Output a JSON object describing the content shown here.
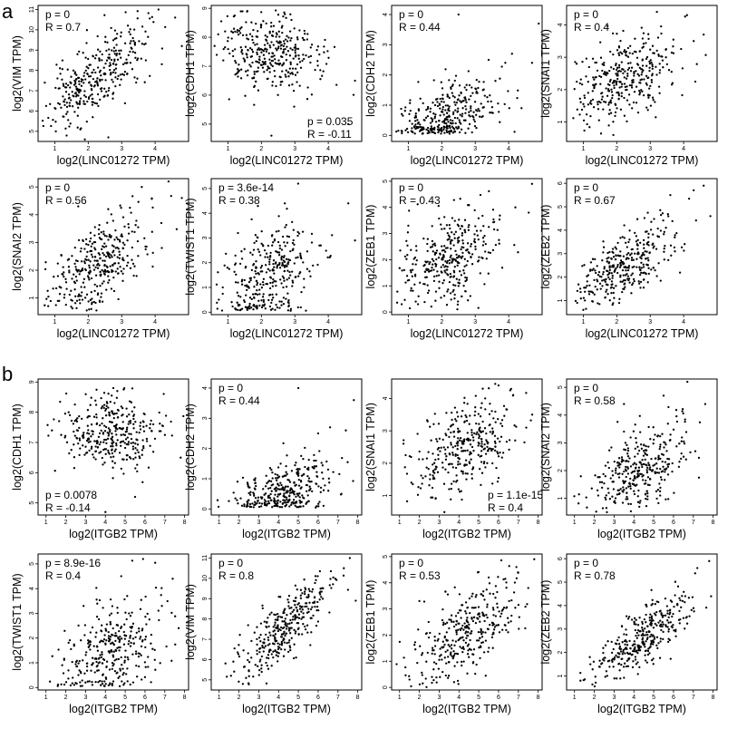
{
  "figure": {
    "panel_letters": [
      "a",
      "b"
    ]
  },
  "chart_data": [
    {
      "type": "scatter",
      "group": "a",
      "xlabel": "log2(LINC01272 TPM)",
      "ylabel": "log2(VIM TPM)",
      "p": "p = 0",
      "r": "R = 0.7",
      "stats_corner": "top-left",
      "xlim": [
        0.5,
        5
      ],
      "ylim": [
        4.5,
        11.2
      ],
      "xticks": [
        "1",
        "2",
        "3",
        "4"
      ],
      "yticks": [
        "5",
        "6",
        "7",
        "8",
        "9",
        "10",
        "11"
      ],
      "r_value": 0.7,
      "x_mean": 2.2,
      "x_sd": 0.75,
      "y_mean": 7.6,
      "y_sd": 1.25,
      "n": 330,
      "seed": 11,
      "points": [
        [
          4.6,
          10.6
        ],
        [
          4.1,
          11.0
        ],
        [
          0.7,
          7.4
        ],
        [
          1.9,
          4.6
        ],
        [
          2.6,
          4.7
        ],
        [
          4.8,
          9.2
        ],
        [
          4.2,
          8.3
        ]
      ]
    },
    {
      "type": "scatter",
      "group": "a",
      "xlabel": "log2(LINC01272 TPM)",
      "ylabel": "log2(CDH1 TPM)",
      "p": "p = 0.035",
      "r": "R = -0.11",
      "stats_corner": "bottom-right",
      "xlim": [
        0.5,
        5
      ],
      "ylim": [
        4.4,
        9.1
      ],
      "xticks": [
        "1",
        "2",
        "3",
        "4"
      ],
      "yticks": [
        "5",
        "6",
        "7",
        "8",
        "9"
      ],
      "r_value": -0.11,
      "x_mean": 2.2,
      "x_sd": 0.75,
      "y_mean": 7.4,
      "y_sd": 0.7,
      "n": 330,
      "seed": 23,
      "points": [
        [
          2.3,
          4.6
        ],
        [
          4.6,
          5.0
        ],
        [
          0.6,
          7.7
        ],
        [
          4.8,
          6.5
        ],
        [
          2.7,
          8.8
        ],
        [
          2.9,
          8.6
        ]
      ]
    },
    {
      "type": "scatter",
      "group": "a",
      "xlabel": "log2(LINC01272 TPM)",
      "ylabel": "log2(CDH2 TPM)",
      "p": "p = 0",
      "r": "R = 0.44",
      "stats_corner": "top-left",
      "xlim": [
        0.5,
        5
      ],
      "ylim": [
        -0.2,
        4.3
      ],
      "xticks": [
        "1",
        "2",
        "3",
        "4"
      ],
      "yticks": [
        "0",
        "1",
        "2",
        "3",
        "4"
      ],
      "r_value": 0.44,
      "x_mean": 2.2,
      "x_sd": 0.75,
      "y_mean": 0.6,
      "y_sd": 0.6,
      "y_min": 0.05,
      "n": 330,
      "seed": 37,
      "points": [
        [
          2.5,
          4.0
        ],
        [
          4.9,
          3.7
        ],
        [
          4.1,
          2.7
        ],
        [
          3.4,
          2.5
        ],
        [
          3.9,
          2.4
        ],
        [
          4.7,
          2.4
        ]
      ]
    },
    {
      "type": "scatter",
      "group": "a",
      "xlabel": "log2(LINC01272 TPM)",
      "ylabel": "log2(SNAI1 TPM)",
      "p": "p = 0",
      "r": "R = 0.4",
      "stats_corner": "top-left",
      "xlim": [
        0.5,
        5
      ],
      "ylim": [
        0.4,
        4.6
      ],
      "xticks": [
        "1",
        "2",
        "3",
        "4"
      ],
      "yticks": [
        "1",
        "2",
        "3",
        "4"
      ],
      "r_value": 0.4,
      "x_mean": 2.2,
      "x_sd": 0.75,
      "y_mean": 2.4,
      "y_sd": 0.75,
      "n": 330,
      "seed": 41,
      "points": [
        [
          4.1,
          4.3
        ],
        [
          3.2,
          4.4
        ],
        [
          4.6,
          3.7
        ],
        [
          4.3,
          3.5
        ],
        [
          0.8,
          2.8
        ],
        [
          1.9,
          0.6
        ]
      ]
    },
    {
      "type": "scatter",
      "group": "a",
      "xlabel": "log2(LINC01272 TPM)",
      "ylabel": "log2(SNAI2 TPM)",
      "p": "p = 0",
      "r": "R = 0.56",
      "stats_corner": "top-left",
      "xlim": [
        0.5,
        5
      ],
      "ylim": [
        0.4,
        5.3
      ],
      "xticks": [
        "1",
        "2",
        "3",
        "4"
      ],
      "yticks": [
        "1",
        "2",
        "3",
        "4",
        "5"
      ],
      "r_value": 0.56,
      "x_mean": 2.2,
      "x_sd": 0.75,
      "y_mean": 2.1,
      "y_sd": 0.9,
      "n": 330,
      "seed": 53,
      "points": [
        [
          4.4,
          5.2
        ],
        [
          3.6,
          5.0
        ],
        [
          4.8,
          4.6
        ],
        [
          4.2,
          2.8
        ],
        [
          1.7,
          4.3
        ]
      ]
    },
    {
      "type": "scatter",
      "group": "a",
      "xlabel": "log2(LINC01272 TPM)",
      "ylabel": "log2(TWIST1 TPM)",
      "p": "p = 3.6e-14",
      "r": "R = 0.38",
      "stats_corner": "top-left",
      "xlim": [
        0.5,
        5
      ],
      "ylim": [
        -0.1,
        5.4
      ],
      "xticks": [
        "1",
        "2",
        "3",
        "4"
      ],
      "yticks": [
        "0",
        "1",
        "2",
        "3",
        "4",
        "5"
      ],
      "r_value": 0.38,
      "x_mean": 2.2,
      "x_sd": 0.75,
      "y_mean": 1.5,
      "y_sd": 1.0,
      "y_min": 0.05,
      "n": 330,
      "seed": 67,
      "points": [
        [
          4.6,
          4.4
        ],
        [
          3.1,
          5.2
        ],
        [
          4.8,
          2.9
        ],
        [
          1.3,
          3.2
        ],
        [
          2.7,
          4.4
        ]
      ]
    },
    {
      "type": "scatter",
      "group": "a",
      "xlabel": "log2(LINC01272 TPM)",
      "ylabel": "log2(ZEB1 TPM)",
      "p": "p = 0",
      "r": "R = 0.43",
      "stats_corner": "top-left",
      "xlim": [
        0.5,
        5
      ],
      "ylim": [
        -0.1,
        5.1
      ],
      "xticks": [
        "1",
        "2",
        "3",
        "4"
      ],
      "yticks": [
        "0",
        "1",
        "2",
        "3",
        "4",
        "5"
      ],
      "r_value": 0.43,
      "x_mean": 2.2,
      "x_sd": 0.75,
      "y_mean": 2.0,
      "y_sd": 0.95,
      "n": 330,
      "seed": 79,
      "points": [
        [
          4.7,
          4.9
        ],
        [
          4.6,
          3.8
        ],
        [
          4.2,
          4.0
        ],
        [
          0.8,
          0.3
        ],
        [
          1.0,
          3.3
        ]
      ]
    },
    {
      "type": "scatter",
      "group": "a",
      "xlabel": "log2(LINC01272 TPM)",
      "ylabel": "log2(ZEB2 TPM)",
      "p": "p = 0",
      "r": "R = 0.67",
      "stats_corner": "top-left",
      "xlim": [
        0.5,
        5
      ],
      "ylim": [
        0.4,
        6.2
      ],
      "xticks": [
        "1",
        "2",
        "3",
        "4"
      ],
      "yticks": [
        "1",
        "2",
        "3",
        "4",
        "5",
        "6"
      ],
      "r_value": 0.67,
      "x_mean": 2.2,
      "x_sd": 0.75,
      "y_mean": 2.5,
      "y_sd": 1.0,
      "n": 330,
      "seed": 83,
      "points": [
        [
          4.6,
          5.9
        ],
        [
          4.3,
          5.7
        ],
        [
          4.8,
          4.6
        ],
        [
          3.6,
          5.5
        ],
        [
          1.0,
          0.6
        ]
      ]
    },
    {
      "type": "scatter",
      "group": "b",
      "xlabel": "log2(ITGB2 TPM)",
      "ylabel": "log2(CDH1 TPM)",
      "p": "p = 0.0078",
      "r": "R = -0.14",
      "stats_corner": "bottom-left",
      "xlim": [
        0.6,
        8.2
      ],
      "ylim": [
        4.6,
        9.1
      ],
      "xticks": [
        "1",
        "2",
        "3",
        "4",
        "5",
        "6",
        "7",
        "8"
      ],
      "yticks": [
        "5",
        "6",
        "7",
        "8",
        "9"
      ],
      "r_value": -0.14,
      "x_mean": 4.3,
      "x_sd": 1.25,
      "y_mean": 7.3,
      "y_sd": 0.65,
      "n": 330,
      "seed": 97,
      "points": [
        [
          4.0,
          4.7
        ],
        [
          5.5,
          5.2
        ],
        [
          1.3,
          7.4
        ],
        [
          7.8,
          6.5
        ],
        [
          4.4,
          8.8
        ],
        [
          4.6,
          8.7
        ]
      ]
    },
    {
      "type": "scatter",
      "group": "b",
      "xlabel": "log2(ITGB2 TPM)",
      "ylabel": "log2(CDH2 TPM)",
      "p": "p = 0",
      "r": "R = 0.44",
      "stats_corner": "top-left",
      "xlim": [
        0.6,
        8.2
      ],
      "ylim": [
        -0.2,
        4.3
      ],
      "xticks": [
        "1",
        "2",
        "3",
        "4",
        "5",
        "6",
        "7",
        "8"
      ],
      "yticks": [
        "0",
        "1",
        "2",
        "3",
        "4"
      ],
      "r_value": 0.44,
      "x_mean": 4.3,
      "x_sd": 1.25,
      "y_mean": 0.6,
      "y_sd": 0.6,
      "y_min": 0.05,
      "n": 330,
      "seed": 101,
      "points": [
        [
          5.0,
          4.0
        ],
        [
          7.8,
          3.6
        ],
        [
          6.6,
          2.7
        ],
        [
          6.0,
          2.5
        ],
        [
          7.4,
          2.6
        ]
      ]
    },
    {
      "type": "scatter",
      "group": "b",
      "xlabel": "log2(ITGB2 TPM)",
      "ylabel": "log2(SNAI1 TPM)",
      "p": "p = 1.1e-15",
      "r": "R = 0.4",
      "stats_corner": "bottom-right",
      "xlim": [
        0.6,
        8.2
      ],
      "ylim": [
        0.4,
        4.6
      ],
      "xticks": [
        "1",
        "2",
        "3",
        "4",
        "5",
        "6",
        "7",
        "8"
      ],
      "yticks": [
        "1",
        "2",
        "3",
        "4"
      ],
      "r_value": 0.4,
      "x_mean": 4.3,
      "x_sd": 1.25,
      "y_mean": 2.5,
      "y_sd": 0.75,
      "n": 330,
      "seed": 113,
      "points": [
        [
          6.0,
          4.4
        ],
        [
          5.2,
          4.3
        ],
        [
          7.7,
          3.5
        ],
        [
          7.4,
          3.1
        ],
        [
          1.2,
          2.6
        ],
        [
          1.6,
          1.4
        ]
      ]
    },
    {
      "type": "scatter",
      "group": "b",
      "xlabel": "log2(ITGB2 TPM)",
      "ylabel": "log2(SNAI2 TPM)",
      "p": "p = 0",
      "r": "R = 0.58",
      "stats_corner": "top-left",
      "xlim": [
        0.6,
        8.2
      ],
      "ylim": [
        0.4,
        5.3
      ],
      "xticks": [
        "1",
        "2",
        "3",
        "4",
        "5",
        "6",
        "7",
        "8"
      ],
      "yticks": [
        "1",
        "2",
        "3",
        "4",
        "5"
      ],
      "r_value": 0.58,
      "x_mean": 4.3,
      "x_sd": 1.25,
      "y_mean": 2.1,
      "y_sd": 0.9,
      "n": 330,
      "seed": 127,
      "points": [
        [
          6.7,
          5.2
        ],
        [
          5.5,
          4.7
        ],
        [
          7.6,
          4.4
        ],
        [
          7.1,
          2.7
        ],
        [
          3.5,
          4.4
        ]
      ]
    },
    {
      "type": "scatter",
      "group": "b",
      "xlabel": "log2(ITGB2 TPM)",
      "ylabel": "log2(TWIST1 TPM)",
      "p": "p = 8.9e-16",
      "r": "R = 0.4",
      "stats_corner": "top-left",
      "xlim": [
        0.6,
        8.2
      ],
      "ylim": [
        -0.1,
        5.4
      ],
      "xticks": [
        "1",
        "2",
        "3",
        "4",
        "5",
        "6",
        "7",
        "8"
      ],
      "yticks": [
        "0",
        "1",
        "2",
        "3",
        "4",
        "5"
      ],
      "r_value": 0.4,
      "x_mean": 4.3,
      "x_sd": 1.25,
      "y_mean": 1.5,
      "y_sd": 1.0,
      "y_min": 0.05,
      "n": 330,
      "seed": 131,
      "points": [
        [
          5.9,
          5.2
        ],
        [
          7.4,
          4.4
        ],
        [
          7.7,
          2.4
        ],
        [
          2.9,
          3.3
        ],
        [
          4.8,
          4.5
        ]
      ]
    },
    {
      "type": "scatter",
      "group": "b",
      "xlabel": "log2(ITGB2 TPM)",
      "ylabel": "log2(VIM TPM)",
      "p": "p = 0",
      "r": "R = 0.8",
      "stats_corner": "top-left",
      "xlim": [
        0.6,
        8.2
      ],
      "ylim": [
        4.5,
        11.2
      ],
      "xticks": [
        "1",
        "2",
        "3",
        "4",
        "5",
        "6",
        "7",
        "8"
      ],
      "yticks": [
        "5",
        "6",
        "7",
        "8",
        "9",
        "10",
        "11"
      ],
      "r_value": 0.8,
      "x_mean": 4.3,
      "x_sd": 1.25,
      "y_mean": 7.6,
      "y_sd": 1.25,
      "n": 330,
      "seed": 139,
      "points": [
        [
          7.6,
          11.0
        ],
        [
          7.3,
          10.5
        ],
        [
          1.6,
          5.2
        ],
        [
          2.2,
          4.8
        ],
        [
          7.9,
          8.9
        ]
      ]
    },
    {
      "type": "scatter",
      "group": "b",
      "xlabel": "log2(ITGB2 TPM)",
      "ylabel": "log2(ZEB1 TPM)",
      "p": "p = 0",
      "r": "R = 0.53",
      "stats_corner": "top-left",
      "xlim": [
        0.6,
        8.2
      ],
      "ylim": [
        -0.1,
        5.1
      ],
      "xticks": [
        "1",
        "2",
        "3",
        "4",
        "5",
        "6",
        "7",
        "8"
      ],
      "yticks": [
        "0",
        "1",
        "2",
        "3",
        "4",
        "5"
      ],
      "r_value": 0.53,
      "x_mean": 4.3,
      "x_sd": 1.25,
      "y_mean": 2.0,
      "y_sd": 0.95,
      "n": 330,
      "seed": 149,
      "points": [
        [
          7.8,
          4.9
        ],
        [
          6.9,
          4.6
        ],
        [
          7.5,
          3.8
        ],
        [
          1.5,
          0.3
        ],
        [
          2.0,
          3.3
        ]
      ]
    },
    {
      "type": "scatter",
      "group": "b",
      "xlabel": "log2(ITGB2 TPM)",
      "ylabel": "log2(ZEB2 TPM)",
      "p": "p = 0",
      "r": "R = 0.78",
      "stats_corner": "top-left",
      "xlim": [
        0.6,
        8.2
      ],
      "ylim": [
        0.4,
        6.2
      ],
      "xticks": [
        "1",
        "2",
        "3",
        "4",
        "5",
        "6",
        "7",
        "8"
      ],
      "yticks": [
        "1",
        "2",
        "3",
        "4",
        "5",
        "6"
      ],
      "r_value": 0.78,
      "x_mean": 4.3,
      "x_sd": 1.25,
      "y_mean": 2.5,
      "y_sd": 1.0,
      "n": 330,
      "seed": 157,
      "points": [
        [
          7.8,
          5.9
        ],
        [
          7.2,
          5.6
        ],
        [
          7.9,
          4.4
        ],
        [
          1.3,
          0.8
        ],
        [
          1.8,
          1.5
        ]
      ]
    }
  ]
}
